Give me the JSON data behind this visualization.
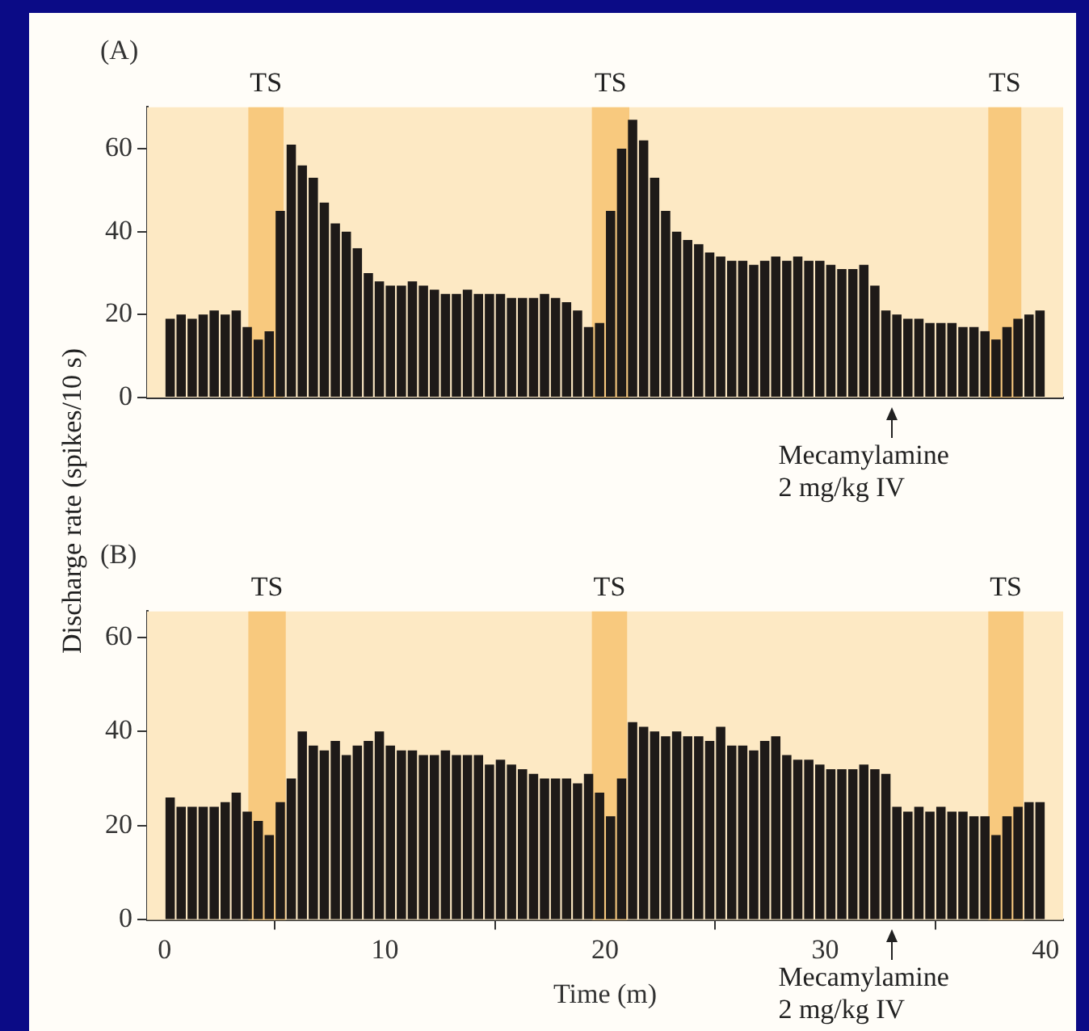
{
  "chart_data": [
    {
      "type": "bar",
      "title": "(A)",
      "ylabel": "Discharge rate (spikes/10 s)",
      "color": "#1e1a18",
      "tick_labels": "y",
      "grid": false,
      "x": [
        0.25,
        0.75,
        1.25,
        1.75,
        2.25,
        2.75,
        3.25,
        3.75,
        4.25,
        4.75,
        5.25,
        5.75,
        6.25,
        6.75,
        7.25,
        7.75,
        8.25,
        8.75,
        9.25,
        9.75,
        10.25,
        10.75,
        11.25,
        11.75,
        12.25,
        12.75,
        13.25,
        13.75,
        14.25,
        14.75,
        15.25,
        15.75,
        16.25,
        16.75,
        17.25,
        17.75,
        18.25,
        18.75,
        19.25,
        19.75,
        20.25,
        20.75,
        21.25,
        21.75,
        22.25,
        22.75,
        23.25,
        23.75,
        24.25,
        24.75,
        25.25,
        25.75,
        26.25,
        26.75,
        27.25,
        27.75,
        28.25,
        28.75,
        29.25,
        29.75,
        30.25,
        30.75,
        31.25,
        31.75,
        32.25,
        32.75,
        33.25,
        33.75,
        34.25,
        34.75,
        35.25,
        35.75,
        36.25,
        36.75,
        37.25,
        37.75,
        38.25,
        38.75,
        39.25,
        39.75
      ],
      "values": [
        19,
        20,
        19,
        20,
        21,
        20,
        21,
        17,
        14,
        16,
        45,
        61,
        56,
        53,
        47,
        42,
        40,
        36,
        30,
        28,
        27,
        27,
        28,
        27,
        26,
        25,
        25,
        26,
        25,
        25,
        25,
        24,
        24,
        24,
        25,
        24,
        23,
        21,
        17,
        18,
        45,
        60,
        67,
        62,
        53,
        45,
        40,
        38,
        37,
        35,
        34,
        33,
        33,
        32,
        33,
        34,
        33,
        34,
        33,
        33,
        32,
        31,
        31,
        32,
        27,
        21,
        20,
        19,
        19,
        18,
        18,
        18,
        17,
        17,
        16,
        14,
        17,
        19,
        20,
        21
      ],
      "xlim": [
        -0.8,
        40.8
      ],
      "ylim": [
        0,
        70
      ],
      "xticks": [
        0,
        10,
        20,
        30,
        40
      ],
      "yticks": [
        0,
        20,
        40,
        60
      ],
      "bands": [
        {
          "axis": "x",
          "from": 3.8,
          "to": 5.4,
          "label": "TS",
          "color": "#f8c97e"
        },
        {
          "axis": "x",
          "from": 19.4,
          "to": 21.1,
          "label": "TS",
          "color": "#f8c97e"
        },
        {
          "axis": "x",
          "from": 37.4,
          "to": 38.9,
          "label": "TS",
          "color": "#f8c97e"
        }
      ],
      "annotations": [
        {
          "text": "Mecamylamine\n2 mg/kg IV",
          "x": 33,
          "y": 0
        }
      ]
    },
    {
      "type": "bar",
      "title": "(B)",
      "xlabel": "Time (m)",
      "color": "#1e1a18",
      "grid": false,
      "x": [
        0.25,
        0.75,
        1.25,
        1.75,
        2.25,
        2.75,
        3.25,
        3.75,
        4.25,
        4.75,
        5.25,
        5.75,
        6.25,
        6.75,
        7.25,
        7.75,
        8.25,
        8.75,
        9.25,
        9.75,
        10.25,
        10.75,
        11.25,
        11.75,
        12.25,
        12.75,
        13.25,
        13.75,
        14.25,
        14.75,
        15.25,
        15.75,
        16.25,
        16.75,
        17.25,
        17.75,
        18.25,
        18.75,
        19.25,
        19.75,
        20.25,
        20.75,
        21.25,
        21.75,
        22.25,
        22.75,
        23.25,
        23.75,
        24.25,
        24.75,
        25.25,
        25.75,
        26.25,
        26.75,
        27.25,
        27.75,
        28.25,
        28.75,
        29.25,
        29.75,
        30.25,
        30.75,
        31.25,
        31.75,
        32.25,
        32.75,
        33.25,
        33.75,
        34.25,
        34.75,
        35.25,
        35.75,
        36.25,
        36.75,
        37.25,
        37.75,
        38.25,
        38.75,
        39.25,
        39.75
      ],
      "values": [
        26,
        24,
        24,
        24,
        24,
        25,
        27,
        23,
        21,
        18,
        25,
        30,
        40,
        37,
        36,
        38,
        35,
        37,
        38,
        40,
        37,
        36,
        36,
        35,
        35,
        36,
        35,
        35,
        35,
        33,
        34,
        33,
        32,
        31,
        30,
        30,
        30,
        29,
        31,
        27,
        22,
        30,
        42,
        41,
        40,
        39,
        40,
        39,
        39,
        38,
        41,
        37,
        37,
        36,
        38,
        39,
        35,
        34,
        34,
        33,
        32,
        32,
        32,
        33,
        32,
        31,
        24,
        23,
        24,
        23,
        24,
        23,
        23,
        22,
        22,
        18,
        22,
        24,
        25,
        25
      ],
      "xlim": [
        -0.8,
        40.8
      ],
      "ylim": [
        0,
        65.5
      ],
      "xticks": [
        0,
        10,
        20,
        30,
        40
      ],
      "yticks": [
        0,
        20,
        40,
        60
      ],
      "bands": [
        {
          "axis": "x",
          "from": 3.8,
          "to": 5.5,
          "label": "TS",
          "color": "#f8c97e"
        },
        {
          "axis": "x",
          "from": 19.4,
          "to": 21.0,
          "label": "TS",
          "color": "#f8c97e"
        },
        {
          "axis": "x",
          "from": 37.4,
          "to": 39.0,
          "label": "TS",
          "color": "#f8c97e"
        }
      ],
      "annotations": [
        {
          "text": "Mecamylamine\n2 mg/kg IV",
          "x": 33,
          "y": 0
        }
      ]
    }
  ]
}
